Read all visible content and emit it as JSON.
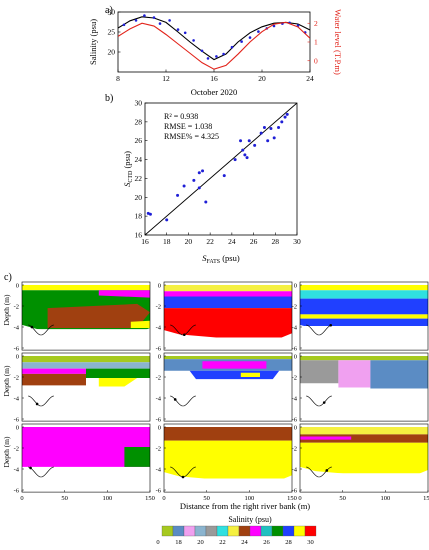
{
  "panels": {
    "a": {
      "label": "a)",
      "xlabel": "October 2020",
      "ylabel_left": "Salinity (psu)",
      "ylabel_right": "Water level (T.P.m)",
      "x_ticks": [
        "8",
        "12",
        "16",
        "20",
        "24"
      ],
      "y_ticks_left": [
        "20",
        "25",
        "30"
      ],
      "y_ticks_right": [
        "0",
        "1",
        "2"
      ],
      "colors": {
        "fats": "#000000",
        "ctd": "#1f1fd6",
        "level": "#e2231a"
      }
    },
    "b": {
      "label": "b)",
      "xlabel": "S",
      "xlabel_sub": "FATS",
      "xlabel_unit": " (psu)",
      "ylabel": "S",
      "ylabel_sub": "CTD",
      "ylabel_unit": " (psu)",
      "stats": [
        "R² = 0.938",
        "RMSE = 1.038",
        "RMSE% = 4.325"
      ],
      "ticks": [
        "16",
        "18",
        "20",
        "22",
        "24",
        "26",
        "28",
        "30"
      ]
    },
    "c": {
      "label": "c)",
      "ylabel": "Depth (m)",
      "xlabel": "Distance from the right river bank (m)",
      "y_ticks": [
        "0",
        "-2",
        "-4",
        "-6"
      ],
      "x_ticks": [
        "0",
        "50",
        "100",
        "150"
      ]
    }
  },
  "colorbar": {
    "title": "Salinity (psu)",
    "labels": [
      "0",
      "18",
      "20",
      "22",
      "24",
      "26",
      "28",
      "30"
    ],
    "colors": [
      "#a6c91f",
      "#5b8cc4",
      "#f0a0f0",
      "#8bb4cf",
      "#9a9a9a",
      "#30e0e0",
      "#f5f040",
      "#a04010",
      "#ff00ff",
      "#20c0c0",
      "#009000",
      "#2040ff",
      "#ffff00",
      "#ff0000"
    ]
  },
  "chart_data": [
    {
      "type": "line",
      "title": "",
      "xlabel": "October 2020",
      "ylabel": "Salinity (psu)",
      "xlim": [
        8,
        24
      ],
      "ylim": [
        15,
        30
      ],
      "y2label": "Water level (T.P.m)",
      "y2lim": [
        -0.6,
        2.6
      ],
      "series": [
        {
          "kind": "line",
          "color": "#000000",
          "x": [
            8,
            9,
            10,
            11,
            12,
            13,
            14,
            15,
            16,
            17,
            18,
            19,
            20,
            21,
            22,
            23,
            24
          ],
          "y": [
            26,
            27.8,
            28.8,
            28.5,
            27.4,
            25,
            22.5,
            20.2,
            18.1,
            19.5,
            22.5,
            24.8,
            26.3,
            27.2,
            27.4,
            27,
            25.5
          ]
        },
        {
          "kind": "scatter",
          "color": "#1f1fd6",
          "x": [
            8.5,
            9.5,
            10.2,
            11,
            11.5,
            12.3,
            13,
            13.6,
            14.3,
            15,
            15.5,
            16.2,
            16.8,
            17.5,
            18.3,
            19,
            19.7,
            20.4,
            21,
            21.7,
            22.3,
            23,
            23.6
          ],
          "y": [
            26.8,
            27.9,
            29.1,
            28.6,
            27.1,
            27.9,
            25.6,
            24.8,
            22.9,
            20.3,
            18.4,
            18.9,
            19.5,
            21.2,
            22.6,
            23.6,
            25.1,
            25.9,
            26.5,
            27.1,
            27.3,
            26.6,
            24.9
          ]
        },
        {
          "kind": "line",
          "color": "#e2231a",
          "axis": "right",
          "x": [
            8,
            9,
            10,
            11,
            12,
            13,
            14,
            15,
            16,
            17,
            18,
            19,
            20,
            21,
            22,
            23,
            24
          ],
          "y": [
            1.3,
            1.7,
            2.0,
            1.85,
            1.4,
            0.9,
            0.4,
            -0.1,
            -0.45,
            -0.25,
            0.35,
            1.0,
            1.55,
            1.95,
            2.05,
            1.8,
            1.2
          ]
        }
      ]
    },
    {
      "type": "scatter",
      "title": "",
      "xlabel": "S FATS (psu)",
      "ylabel": "S CTD (psu)",
      "xlim": [
        16,
        30
      ],
      "ylim": [
        16,
        30
      ],
      "line": {
        "x": [
          16,
          30
        ],
        "y": [
          16,
          30
        ]
      },
      "x": [
        16.3,
        16.5,
        18,
        19,
        19.6,
        20.5,
        21,
        21,
        21.3,
        21.6,
        23.3,
        24.3,
        24.8,
        25,
        25.2,
        25.4,
        25.6,
        26.1,
        26.7,
        27,
        27.3,
        27.6,
        27.9,
        28.3,
        28.6,
        28.9,
        29.1
      ],
      "y": [
        18.3,
        18.2,
        17.6,
        20.2,
        21.2,
        21.8,
        21,
        22.6,
        22.8,
        19.5,
        22.3,
        24,
        26,
        25,
        24.5,
        24.2,
        26,
        25.5,
        26.8,
        27.4,
        26,
        27.3,
        26.3,
        27.4,
        28,
        28.5,
        28.8
      ]
    }
  ]
}
